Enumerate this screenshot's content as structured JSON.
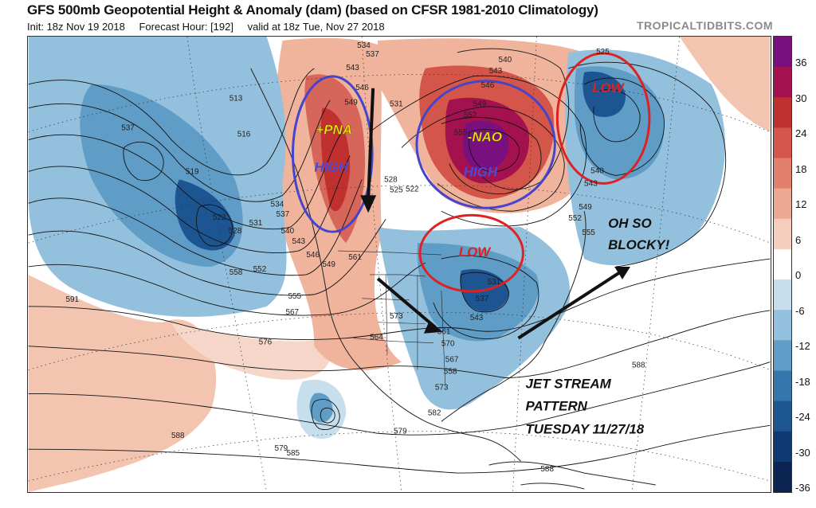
{
  "header": {
    "title": "GFS 500mb Geopotential Height & Anomaly (dam) (based on CFSR 1981-2010 Climatology)",
    "init": "Init: 18z Nov 19 2018",
    "forecast_hour": "Forecast Hour: [192]",
    "valid": "valid at 18z Tue, Nov 27 2018",
    "site": "TROPICALTIDBITS.COM"
  },
  "colorbar": {
    "ticks": [
      "36",
      "30",
      "24",
      "18",
      "12",
      "6",
      "0",
      "-6",
      "-12",
      "-18",
      "-24",
      "-30",
      "-36"
    ],
    "colors": [
      "#7a1080",
      "#a3124f",
      "#c0302f",
      "#d4564a",
      "#e2806d",
      "#eda893",
      "#f5cdbd",
      "#ffffff",
      "#c7dfec",
      "#93c0dc",
      "#5f9cc6",
      "#3577ac",
      "#1d5592",
      "#0e3a73",
      "#0b2452"
    ]
  },
  "annotations": {
    "pna": "+PNA",
    "high_west": "HIGH",
    "nao": "-NAO",
    "high_north": "HIGH",
    "low_atlantic": "LOW",
    "low_lakes": "LOW",
    "blocky_1": "OH SO",
    "blocky_2": "BLOCKY!",
    "jet_1": "JET STREAM",
    "jet_2": "PATTERN",
    "jet_3": "TUESDAY 11/27/18"
  },
  "contour_labels": [
    "534",
    "537",
    "543",
    "546",
    "549",
    "531",
    "528",
    "525",
    "522",
    "540",
    "543",
    "546",
    "549",
    "552",
    "555",
    "525",
    "537",
    "513",
    "516",
    "519",
    "522",
    "528",
    "531",
    "534",
    "537",
    "540",
    "543",
    "546",
    "549",
    "552",
    "558",
    "561",
    "555",
    "567",
    "573",
    "564",
    "570",
    "561",
    "558",
    "567",
    "573",
    "576",
    "579",
    "582",
    "579",
    "585",
    "588",
    "588",
    "588",
    "591",
    "540",
    "543",
    "549",
    "552",
    "555",
    "531",
    "537",
    "543"
  ]
}
